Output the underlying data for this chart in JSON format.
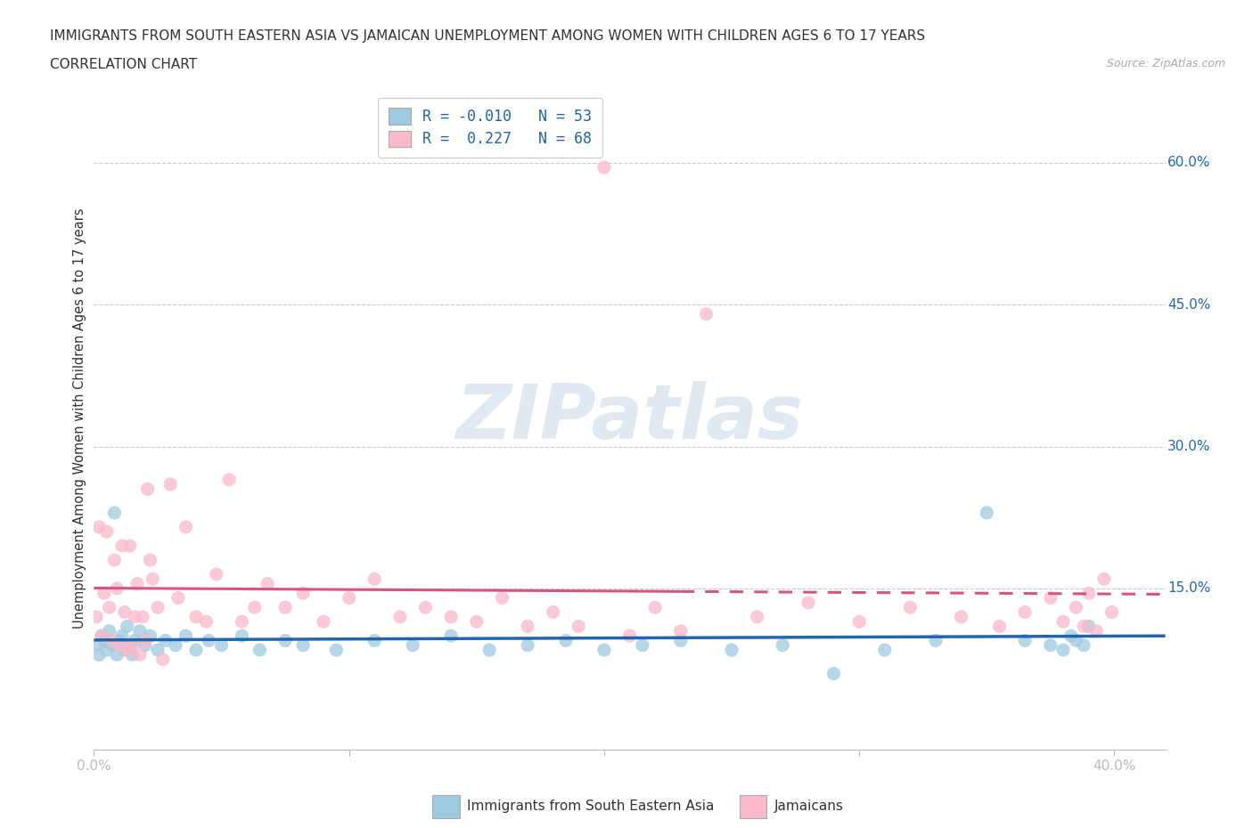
{
  "title_line1": "IMMIGRANTS FROM SOUTH EASTERN ASIA VS JAMAICAN UNEMPLOYMENT AMONG WOMEN WITH CHILDREN AGES 6 TO 17 YEARS",
  "title_line2": "CORRELATION CHART",
  "source_text": "Source: ZipAtlas.com",
  "ylabel": "Unemployment Among Women with Children Ages 6 to 17 years",
  "xlim": [
    0.0,
    0.42
  ],
  "ylim": [
    -0.02,
    0.68
  ],
  "xtick_positions": [
    0.0,
    0.1,
    0.2,
    0.3,
    0.4
  ],
  "xtick_labels": [
    "0.0%",
    "",
    "",
    "",
    "40.0%"
  ],
  "ytick_positions": [
    0.15,
    0.3,
    0.45,
    0.6
  ],
  "ytick_labels": [
    "15.0%",
    "30.0%",
    "45.0%",
    "60.0%"
  ],
  "R_blue": -0.01,
  "N_blue": 53,
  "R_pink": 0.227,
  "N_pink": 68,
  "legend_label_blue": "Immigrants from South Eastern Asia",
  "legend_label_pink": "Jamaicans",
  "scatter_color_blue": "#9ecae1",
  "scatter_color_pink": "#fcb9c9",
  "line_color_blue": "#2166ac",
  "line_color_pink": "#d6547e",
  "background_color": "#ffffff",
  "grid_color": "#cccccc",
  "text_color": "#333333",
  "blue_text_color": "#2166ac",
  "blue_x": [
    0.001,
    0.002,
    0.003,
    0.004,
    0.005,
    0.006,
    0.007,
    0.008,
    0.009,
    0.01,
    0.011,
    0.012,
    0.013,
    0.014,
    0.015,
    0.016,
    0.018,
    0.02,
    0.022,
    0.025,
    0.028,
    0.032,
    0.036,
    0.04,
    0.045,
    0.05,
    0.058,
    0.065,
    0.075,
    0.082,
    0.095,
    0.11,
    0.125,
    0.14,
    0.155,
    0.17,
    0.185,
    0.2,
    0.215,
    0.23,
    0.25,
    0.27,
    0.29,
    0.31,
    0.33,
    0.35,
    0.365,
    0.375,
    0.38,
    0.383,
    0.385,
    0.388,
    0.39
  ],
  "blue_y": [
    0.09,
    0.08,
    0.1,
    0.095,
    0.085,
    0.105,
    0.09,
    0.23,
    0.08,
    0.095,
    0.1,
    0.085,
    0.11,
    0.09,
    0.08,
    0.095,
    0.105,
    0.09,
    0.1,
    0.085,
    0.095,
    0.09,
    0.1,
    0.085,
    0.095,
    0.09,
    0.1,
    0.085,
    0.095,
    0.09,
    0.085,
    0.095,
    0.09,
    0.1,
    0.085,
    0.09,
    0.095,
    0.085,
    0.09,
    0.095,
    0.085,
    0.09,
    0.06,
    0.085,
    0.095,
    0.23,
    0.095,
    0.09,
    0.085,
    0.1,
    0.095,
    0.09,
    0.11
  ],
  "pink_x": [
    0.001,
    0.002,
    0.003,
    0.004,
    0.005,
    0.006,
    0.007,
    0.008,
    0.009,
    0.01,
    0.011,
    0.012,
    0.013,
    0.014,
    0.015,
    0.016,
    0.017,
    0.018,
    0.019,
    0.02,
    0.021,
    0.022,
    0.023,
    0.025,
    0.027,
    0.03,
    0.033,
    0.036,
    0.04,
    0.044,
    0.048,
    0.053,
    0.058,
    0.063,
    0.068,
    0.075,
    0.082,
    0.09,
    0.1,
    0.11,
    0.12,
    0.13,
    0.14,
    0.15,
    0.16,
    0.17,
    0.18,
    0.19,
    0.2,
    0.21,
    0.22,
    0.23,
    0.24,
    0.26,
    0.28,
    0.3,
    0.32,
    0.34,
    0.355,
    0.365,
    0.375,
    0.38,
    0.385,
    0.388,
    0.39,
    0.393,
    0.396,
    0.399
  ],
  "pink_y": [
    0.12,
    0.215,
    0.1,
    0.145,
    0.21,
    0.13,
    0.095,
    0.18,
    0.15,
    0.09,
    0.195,
    0.125,
    0.085,
    0.195,
    0.09,
    0.12,
    0.155,
    0.08,
    0.12,
    0.095,
    0.255,
    0.18,
    0.16,
    0.13,
    0.075,
    0.26,
    0.14,
    0.215,
    0.12,
    0.115,
    0.165,
    0.265,
    0.115,
    0.13,
    0.155,
    0.13,
    0.145,
    0.115,
    0.14,
    0.16,
    0.12,
    0.13,
    0.12,
    0.115,
    0.14,
    0.11,
    0.125,
    0.11,
    0.595,
    0.1,
    0.13,
    0.105,
    0.44,
    0.12,
    0.135,
    0.115,
    0.13,
    0.12,
    0.11,
    0.125,
    0.14,
    0.115,
    0.13,
    0.11,
    0.145,
    0.105,
    0.16,
    0.125
  ]
}
